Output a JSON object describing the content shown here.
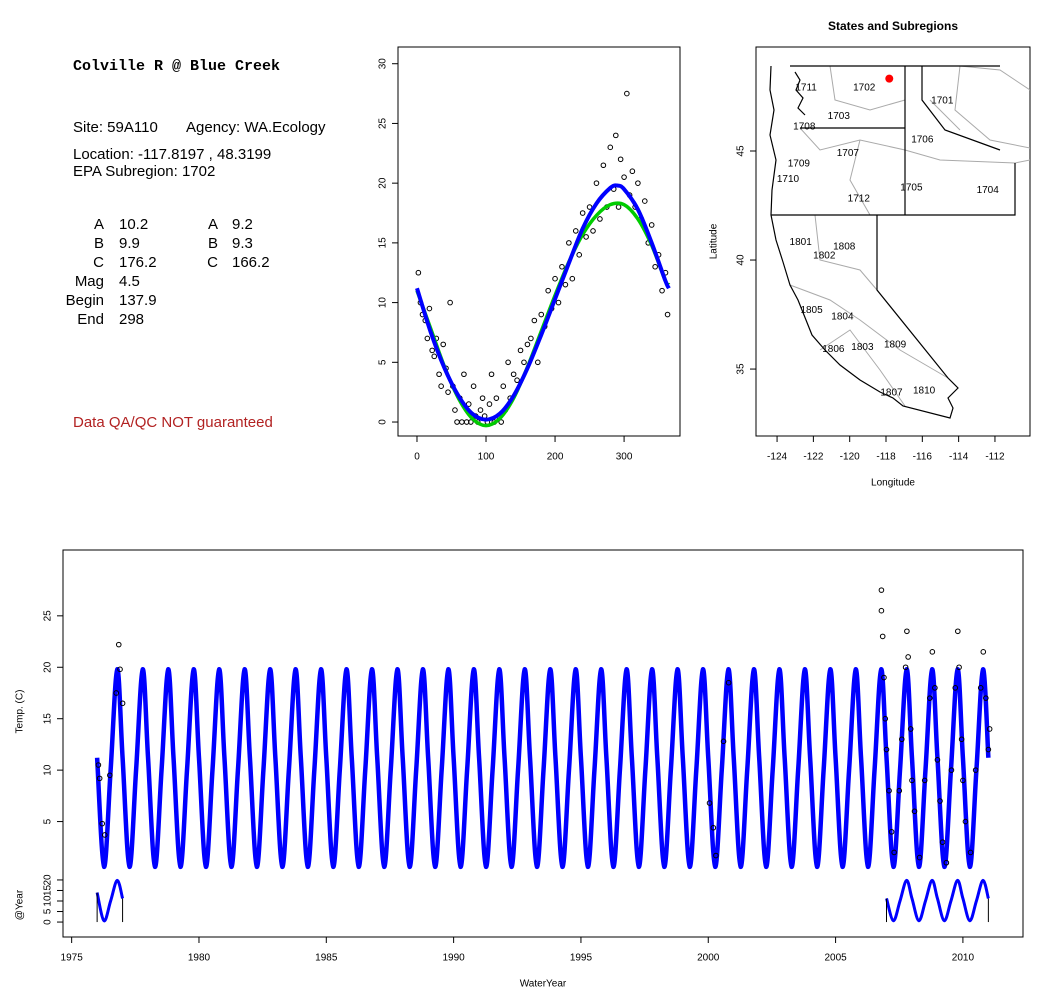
{
  "site_info": {
    "title": "Colville R @ Blue Creek",
    "site": "Site: 59A110",
    "agency": "Agency: WA.Ecology",
    "location": "Location: -117.8197 , 48.3199",
    "subregion": "EPA Subregion: 1702",
    "params": [
      [
        "A",
        10.2
      ],
      [
        "B",
        9.9
      ],
      [
        "C",
        176.2
      ],
      [
        "Mag",
        4.5
      ],
      [
        "Begin",
        137.9
      ],
      [
        "End",
        298
      ]
    ],
    "params2": [
      [
        "A",
        9.2
      ],
      [
        "B",
        9.3
      ],
      [
        "C",
        166.2
      ]
    ],
    "disclaimer": "Data QA/QC NOT guaranteed"
  },
  "chart_data": [
    {
      "type": "scatter",
      "xlim": [
        -27.5,
        381
      ],
      "ylim": [
        -1.17,
        31.4
      ],
      "xticks": [
        0,
        100,
        200,
        300
      ],
      "yticks": [
        0,
        5,
        10,
        15,
        20,
        25,
        30
      ],
      "series": [
        {
          "type": "points",
          "color": "#000000",
          "x": [
            2,
            5,
            8,
            12,
            15,
            18,
            22,
            25,
            28,
            32,
            35,
            38,
            42,
            45,
            48,
            52,
            55,
            58,
            62,
            65,
            68,
            72,
            75,
            78,
            82,
            85,
            88,
            92,
            95,
            98,
            102,
            105,
            108,
            112,
            115,
            118,
            122,
            125,
            128,
            132,
            135,
            140,
            145,
            150,
            155,
            160,
            165,
            170,
            175,
            180,
            185,
            190,
            195,
            200,
            205,
            210,
            215,
            220,
            225,
            230,
            235,
            240,
            245,
            250,
            255,
            260,
            265,
            270,
            275,
            280,
            285,
            288,
            292,
            295,
            300,
            304,
            308,
            312,
            316,
            320,
            325,
            330,
            335,
            340,
            345,
            350,
            355,
            360,
            363
          ],
          "y": [
            12.5,
            10,
            9,
            8.5,
            7,
            9.5,
            6,
            5.5,
            7,
            4,
            3,
            6.5,
            4.5,
            2.5,
            10,
            3,
            1,
            0,
            2,
            0,
            4,
            0,
            1.5,
            0,
            3,
            0.5,
            0,
            1,
            2,
            0.5,
            0,
            1.5,
            4,
            0,
            2,
            0.5,
            0,
            3,
            1,
            5,
            2,
            4,
            3.5,
            6,
            5,
            6.5,
            7,
            8.5,
            5,
            9,
            8,
            11,
            9.5,
            12,
            10,
            13,
            11.5,
            15,
            12,
            16,
            14,
            17.5,
            15.5,
            18,
            16,
            20,
            17,
            21.5,
            18,
            23,
            19.5,
            24,
            18,
            22,
            20.5,
            27.5,
            19,
            21,
            18,
            20,
            17,
            18.5,
            15,
            16.5,
            13,
            14,
            11,
            12.5,
            9
          ]
        },
        {
          "type": "line",
          "color": "#00cc00",
          "width": 3.5,
          "x": [
            0,
            20,
            40,
            60,
            80,
            100,
            120,
            140,
            160,
            180,
            200,
            220,
            240,
            260,
            280,
            300,
            320,
            340,
            360,
            365
          ],
          "y": [
            11,
            7.8,
            4.6,
            2,
            0.3,
            -0.3,
            0.3,
            2,
            4.6,
            7.6,
            10.6,
            13.4,
            15.7,
            17.3,
            18.2,
            18.2,
            17,
            14.8,
            11.8,
            11.5
          ]
        },
        {
          "type": "line",
          "color": "#0000ff",
          "width": 4,
          "x": [
            0,
            20,
            40,
            60,
            80,
            100,
            120,
            140,
            160,
            180,
            200,
            220,
            240,
            260,
            280,
            290,
            300,
            320,
            340,
            360,
            365
          ],
          "y": [
            11.2,
            7.5,
            4.5,
            2.2,
            0.7,
            0.2,
            0.7,
            2.2,
            4.5,
            7.3,
            10.3,
            13.3,
            16.2,
            18.3,
            19.6,
            19.8,
            19.5,
            17.8,
            15,
            11.8,
            11.2
          ]
        }
      ]
    },
    {
      "type": "map",
      "title": "States and Subregions",
      "xlabel": "Longitude",
      "ylabel": "Latitude",
      "xlim": [
        -125.16,
        -110.07
      ],
      "ylim": [
        31.93,
        49.77
      ],
      "xticks": [
        -124,
        -122,
        -120,
        -118,
        -116,
        -114,
        -112
      ],
      "yticks": [
        35,
        40,
        45
      ],
      "regions": [
        {
          "label": "1701",
          "lon": -114.9,
          "lat": 47.3
        },
        {
          "label": "1702",
          "lon": -119.2,
          "lat": 47.9
        },
        {
          "label": "1703",
          "lon": -120.6,
          "lat": 46.6
        },
        {
          "label": "1704",
          "lon": -112.4,
          "lat": 43.2
        },
        {
          "label": "1705",
          "lon": -116.6,
          "lat": 43.3
        },
        {
          "label": "1706",
          "lon": -116,
          "lat": 45.5
        },
        {
          "label": "1707",
          "lon": -120.1,
          "lat": 44.9
        },
        {
          "label": "1708",
          "lon": -122.5,
          "lat": 46.1
        },
        {
          "label": "1709",
          "lon": -122.8,
          "lat": 44.4
        },
        {
          "label": "1710",
          "lon": -123.4,
          "lat": 43.7
        },
        {
          "label": "1711",
          "lon": -122.4,
          "lat": 47.9
        },
        {
          "label": "1712",
          "lon": -119.5,
          "lat": 42.8
        },
        {
          "label": "1801",
          "lon": -122.7,
          "lat": 40.8
        },
        {
          "label": "1802",
          "lon": -121.4,
          "lat": 40.2
        },
        {
          "label": "1803",
          "lon": -119.3,
          "lat": 36
        },
        {
          "label": "1804",
          "lon": -120.4,
          "lat": 37.4
        },
        {
          "label": "1805",
          "lon": -122.1,
          "lat": 37.7
        },
        {
          "label": "1806",
          "lon": -120.9,
          "lat": 35.9
        },
        {
          "label": "1807",
          "lon": -117.7,
          "lat": 33.9
        },
        {
          "label": "1808",
          "lon": -120.3,
          "lat": 40.6
        },
        {
          "label": "1809",
          "lon": -117.5,
          "lat": 36.1
        },
        {
          "label": "1810",
          "lon": -115.9,
          "lat": 34
        }
      ],
      "series": [
        {
          "type": "points",
          "color": "#ff0000",
          "filled": true,
          "x": [
            -117.8197
          ],
          "y": [
            48.3199
          ]
        }
      ]
    },
    {
      "type": "line",
      "ylabel": "Temp. (C)",
      "xlim": [
        1974.66,
        2012.36
      ],
      "ylim": [
        0,
        31.4
      ],
      "yticks": [
        5,
        10,
        15,
        20,
        25
      ],
      "series": [
        {
          "type": "line",
          "color": "#0000ff",
          "width": 4.5,
          "x": [
            1976,
            1976.27,
            1976.53,
            1976.79,
            1977,
            1977.27,
            1977.53,
            1977.79,
            1978,
            1978.27,
            1978.53,
            1978.79,
            1979,
            1979.27,
            1979.53,
            1979.79,
            1980,
            1980.27,
            1980.53,
            1980.79,
            1981,
            1981.27,
            1981.53,
            1981.79,
            1982,
            1982.27,
            1982.53,
            1982.79,
            1983,
            1983.27,
            1983.53,
            1983.79,
            1984,
            1984.27,
            1984.53,
            1984.79,
            1985,
            1985.27,
            1985.53,
            1985.79,
            1986,
            1986.27,
            1986.53,
            1986.79,
            1987,
            1987.27,
            1987.53,
            1987.79,
            1988,
            1988.27,
            1988.53,
            1988.79,
            1989,
            1989.27,
            1989.53,
            1989.79,
            1990,
            1990.27,
            1990.53,
            1990.79,
            1991,
            1991.27,
            1991.53,
            1991.79,
            1992,
            1992.27,
            1992.53,
            1992.79,
            1993,
            1993.27,
            1993.53,
            1993.79,
            1994,
            1994.27,
            1994.53,
            1994.79,
            1995,
            1995.27,
            1995.53,
            1995.79,
            1996,
            1996.27,
            1996.53,
            1996.79,
            1997,
            1997.27,
            1997.53,
            1997.79,
            1998,
            1998.27,
            1998.53,
            1998.79,
            1999,
            1999.27,
            1999.53,
            1999.79,
            2000,
            2000.27,
            2000.53,
            2000.79,
            2001,
            2001.27,
            2001.53,
            2001.79,
            2002,
            2002.27,
            2002.53,
            2002.79,
            2003,
            2003.27,
            2003.53,
            2003.79,
            2004,
            2004.27,
            2004.53,
            2004.79,
            2005,
            2005.27,
            2005.53,
            2005.79,
            2006,
            2006.27,
            2006.53,
            2006.79,
            2007,
            2007.27,
            2007.53,
            2007.79,
            2008,
            2008.27,
            2008.53,
            2008.79,
            2009,
            2009.27,
            2009.53,
            2009.79,
            2010,
            2010.27,
            2010.53,
            2010.79,
            2011
          ],
          "y": [
            11.2,
            0.6,
            10,
            19.8,
            11.2,
            0.6,
            10,
            19.8,
            11.2,
            0.6,
            10,
            19.8,
            11.2,
            0.6,
            10,
            19.8,
            11.2,
            0.6,
            10,
            19.8,
            11.2,
            0.6,
            10,
            19.8,
            11.2,
            0.6,
            10,
            19.8,
            11.2,
            0.6,
            10,
            19.8,
            11.2,
            0.6,
            10,
            19.8,
            11.2,
            0.6,
            10,
            19.8,
            11.2,
            0.6,
            10,
            19.8,
            11.2,
            0.6,
            10,
            19.8,
            11.2,
            0.6,
            10,
            19.8,
            11.2,
            0.6,
            10,
            19.8,
            11.2,
            0.6,
            10,
            19.8,
            11.2,
            0.6,
            10,
            19.8,
            11.2,
            0.6,
            10,
            19.8,
            11.2,
            0.6,
            10,
            19.8,
            11.2,
            0.6,
            10,
            19.8,
            11.2,
            0.6,
            10,
            19.8,
            11.2,
            0.6,
            10,
            19.8,
            11.2,
            0.6,
            10,
            19.8,
            11.2,
            0.6,
            10,
            19.8,
            11.2,
            0.6,
            10,
            19.8,
            11.2,
            0.6,
            10,
            19.8,
            11.2,
            0.6,
            10,
            19.8,
            11.2,
            0.6,
            10,
            19.8,
            11.2,
            0.6,
            10,
            19.8,
            11.2,
            0.6,
            10,
            19.8,
            11.2,
            0.6,
            10,
            19.8,
            11.2,
            0.6,
            10,
            19.8,
            11.2,
            0.6,
            10,
            19.8,
            11.2,
            0.6,
            10,
            19.8,
            11.2,
            0.6,
            10,
            19.8,
            11.2,
            0.6,
            10,
            19.8,
            11.2
          ]
        },
        {
          "type": "points",
          "color": "#000000",
          "x": [
            1976.05,
            1976.1,
            1976.2,
            1976.3,
            1976.5,
            1976.75,
            1976.85,
            1976.9,
            1977,
            2000.05,
            2000.2,
            2000.3,
            2000.6,
            2000.8,
            2006.8,
            2006.8,
            2006.85,
            2006.9,
            2006.95,
            2007,
            2007.1,
            2007.2,
            2007.3,
            2007.5,
            2007.6,
            2007.75,
            2007.8,
            2007.85,
            2007.95,
            2008,
            2008.1,
            2008.3,
            2008.5,
            2008.7,
            2008.8,
            2008.9,
            2009,
            2009.1,
            2009.2,
            2009.35,
            2009.55,
            2009.7,
            2009.8,
            2009.85,
            2009.95,
            2010,
            2010.1,
            2010.3,
            2010.5,
            2010.7,
            2010.8,
            2010.9,
            2011,
            2011.05
          ],
          "y": [
            10.5,
            9.2,
            4.8,
            3.7,
            9.5,
            17.5,
            22.2,
            19.8,
            16.5,
            6.8,
            4.4,
            1.7,
            12.8,
            18.5,
            27.5,
            25.5,
            23,
            19,
            15,
            12,
            8,
            4,
            2,
            8,
            13,
            20,
            23.5,
            21,
            14,
            9,
            6,
            1.5,
            9,
            17,
            21.5,
            18,
            11,
            7,
            3,
            1,
            10,
            18,
            23.5,
            20,
            13,
            9,
            5,
            2,
            10,
            18,
            21.5,
            17,
            12,
            14
          ]
        }
      ]
    },
    {
      "type": "line",
      "ylabel": "@Year",
      "xlabel": "WaterYear",
      "xlim": [
        1974.66,
        2012.36
      ],
      "ylim": [
        -7.1,
        23.3
      ],
      "xticks": [
        1975,
        1980,
        1985,
        1990,
        1995,
        2000,
        2005,
        2010
      ],
      "yticks": [
        0,
        5,
        10,
        15,
        20
      ],
      "end_lines": true,
      "series": [
        {
          "type": "line",
          "color": "#0000ff",
          "width": 3,
          "x": [
            1976,
            1976.27,
            1976.53,
            1976.79,
            1977
          ],
          "y": [
            14,
            0.6,
            10,
            19.8,
            11.2
          ]
        },
        {
          "type": "line",
          "color": "#0000ff",
          "width": 3,
          "x": [
            2007,
            2007.27,
            2007.53,
            2007.79,
            2008,
            2008.27,
            2008.53,
            2008.79,
            2009,
            2009.27,
            2009.53,
            2009.79,
            2010,
            2010.27,
            2010.53,
            2010.79,
            2011
          ],
          "y": [
            11.2,
            0.6,
            10,
            19.8,
            11.2,
            0.6,
            10,
            19.8,
            11.2,
            0.6,
            10,
            19.8,
            11.2,
            0.6,
            10,
            19.8,
            11.2
          ]
        }
      ]
    }
  ]
}
